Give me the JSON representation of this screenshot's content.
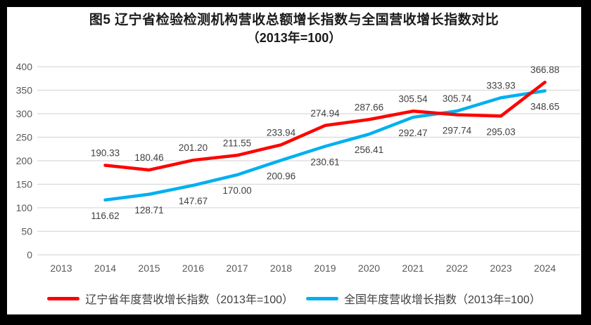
{
  "title": {
    "line1": "图5  辽宁省检验检测机构营收总额增长指数与全国营收增长指数对比",
    "line2": "（2013年=100）"
  },
  "chart_data": {
    "type": "line",
    "title": "图5 辽宁省检验检测机构营收总额增长指数与全国营收增长指数对比（2013年=100）",
    "categories": [
      "2013",
      "2014",
      "2015",
      "2016",
      "2017",
      "2018",
      "2019",
      "2020",
      "2021",
      "2022",
      "2023",
      "2024"
    ],
    "series": [
      {
        "name": "辽宁省年度营收增长指数（2013年=100）",
        "color": "#ff0000",
        "values": [
          null,
          190.33,
          180.46,
          201.2,
          211.55,
          233.94,
          274.94,
          287.66,
          305.54,
          297.74,
          295.03,
          366.88
        ],
        "label_side": [
          null,
          "above",
          "above",
          "above",
          "above",
          "above",
          "above",
          "above",
          "above",
          "below",
          "below",
          "above"
        ]
      },
      {
        "name": "全国年度营收增长指数（2013年=100）",
        "color": "#00b0f0",
        "values": [
          null,
          116.62,
          128.71,
          147.67,
          170.0,
          200.96,
          230.61,
          256.41,
          292.47,
          305.74,
          333.93,
          348.65
        ],
        "label_side": [
          null,
          "below",
          "below",
          "below",
          "below",
          "below",
          "below",
          "below",
          "below",
          "above",
          "above",
          "below"
        ]
      }
    ],
    "ylim": [
      0,
      400
    ],
    "ytick_step": 50,
    "yticks": [
      0,
      50,
      100,
      150,
      200,
      250,
      300,
      350,
      400
    ],
    "grid": true,
    "gridline_color": "#d9d9d9",
    "axis_text_color": "#595959",
    "data_label_color": "#404040",
    "legend_position": "bottom",
    "data_labels_decimals": 2
  }
}
